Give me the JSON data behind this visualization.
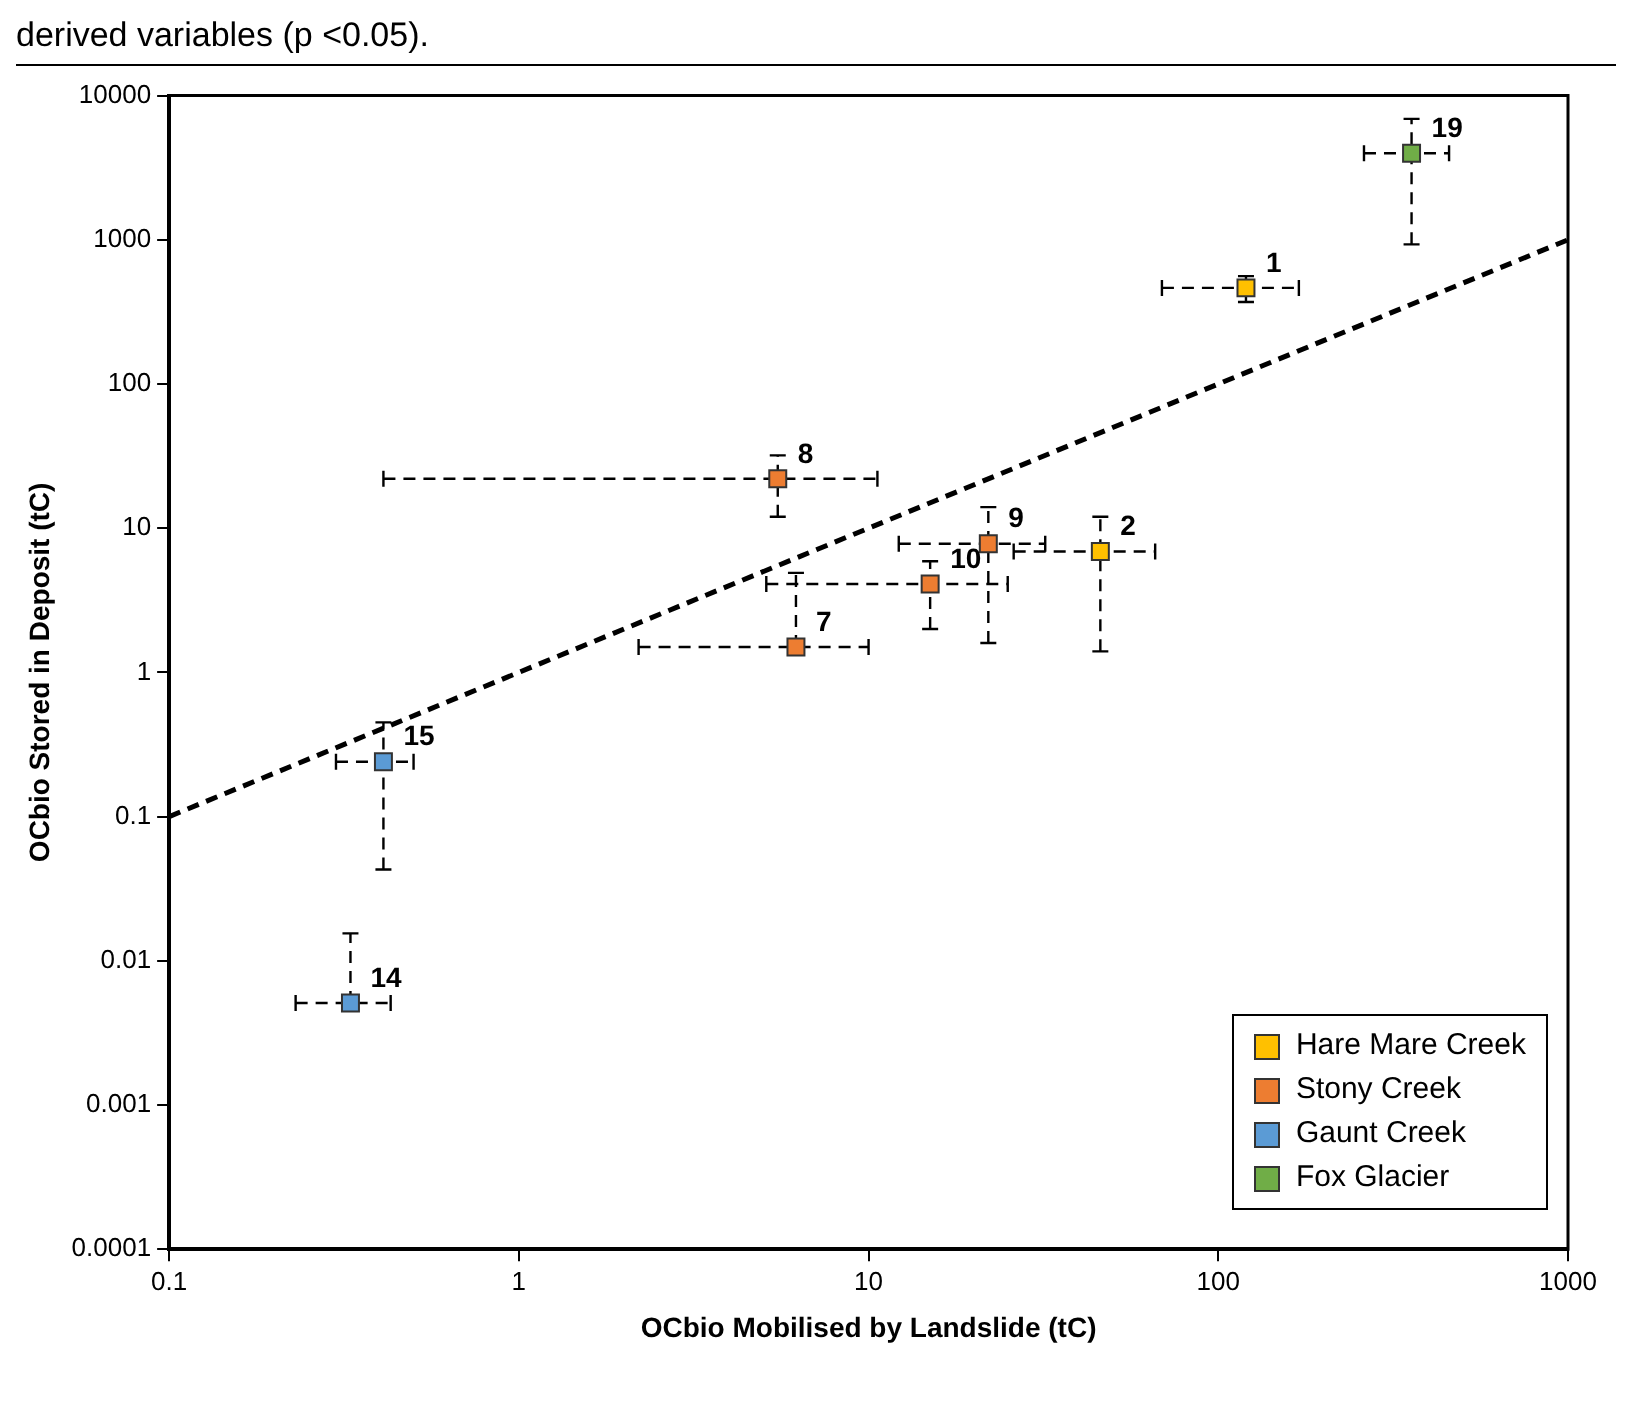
{
  "chart_data": {
    "type": "scatter",
    "annotations": [
      "derived variables (p <0.05).",
      {
        "text": "1",
        "x": 120,
        "y": 464
      },
      {
        "text": "2",
        "x": 46,
        "y": 6.9
      },
      {
        "text": "8",
        "x": 5.5,
        "y": 22
      },
      {
        "text": "9",
        "x": 22,
        "y": 7.8
      },
      {
        "text": "10",
        "x": 15,
        "y": 4.1
      },
      {
        "text": "7",
        "x": 6.2,
        "y": 1.5
      },
      {
        "text": "15",
        "x": 0.41,
        "y": 0.24
      },
      {
        "text": "14",
        "x": 0.33,
        "y": 0.0051
      },
      {
        "text": "19",
        "x": 357,
        "y": 3980
      }
    ],
    "xlabel": "OCbio Mobilised by Landslide (tC)",
    "ylabel": "OCbio Stored in Deposit (tC)",
    "log": "xy",
    "xlim": [
      0.1,
      1000
    ],
    "xticks": [
      0.1,
      1,
      10,
      100,
      1000
    ],
    "ylim": [
      0.0001,
      10000
    ],
    "yticks": [
      0.0001,
      0.001,
      0.01,
      0.1,
      1,
      10,
      100,
      1000,
      10000
    ],
    "grid": false,
    "legend": "bottom right",
    "marker": "square",
    "series": [
      {
        "name": "Hare Mare Creek",
        "color": "#ffc000",
        "x": [
          120,
          46
        ],
        "values": [
          464,
          6.9
        ],
        "xerrors": [
          [
            69,
            170
          ],
          [
            26,
            66
          ]
        ],
        "errors": [
          [
            370,
            560
          ],
          [
            1.4,
            12
          ]
        ]
      },
      {
        "name": "Stony Creek",
        "color": "#ed7d31",
        "x": [
          5.5,
          22,
          15,
          6.2
        ],
        "values": [
          22,
          7.8,
          4.1,
          1.5
        ],
        "xerrors": [
          [
            0.41,
            10.6
          ],
          [
            12.2,
            32
          ],
          [
            5.1,
            25
          ],
          [
            2.2,
            10
          ]
        ],
        "errors": [
          [
            12,
            32
          ],
          [
            1.6,
            14
          ],
          [
            2,
            5.9
          ],
          [
            1.5,
            4.9
          ]
        ]
      },
      {
        "name": "Gaunt Creek",
        "color": "#5b9bd5",
        "x": [
          0.41,
          0.33
        ],
        "values": [
          0.24,
          0.0051
        ],
        "xerrors": [
          [
            0.3,
            0.5
          ],
          [
            0.23,
            0.43
          ]
        ],
        "errors": [
          [
            0.043,
            0.45
          ],
          [
            0.0051,
            0.0155
          ]
        ]
      },
      {
        "name": "Fox Glacier",
        "color": "#70ad47",
        "x": [
          357
        ],
        "values": [
          3980
        ],
        "xerrors": [
          [
            261,
            457
          ]
        ],
        "errors": [
          [
            930,
            6900
          ]
        ]
      },
      {
        "type": "line",
        "color": "#000000",
        "line_style": "dashed",
        "marker": "none",
        "x": [
          0.1,
          1000
        ],
        "values": [
          0.1,
          1000
        ]
      }
    ]
  }
}
